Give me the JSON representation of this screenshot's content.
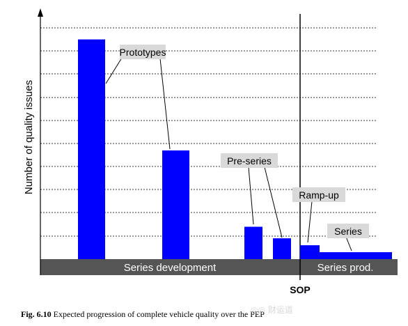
{
  "chart_data": {
    "type": "bar",
    "ylabel": "Number of quality issues",
    "grid": true,
    "ylim": [
      0,
      10
    ],
    "bars": [
      {
        "group": "Prototypes",
        "value": 9.5
      },
      {
        "group": "Prototypes",
        "value": 4.7
      },
      {
        "group": "Pre-series",
        "value": 1.4
      },
      {
        "group": "Pre-series",
        "value": 0.9
      },
      {
        "group": "Ramp-up",
        "value": 0.6
      },
      {
        "group": "Series",
        "value": 0.3
      }
    ],
    "annotations": [
      "Prototypes",
      "Pre-series",
      "Ramp-up",
      "Series"
    ],
    "marker": "SOP",
    "phases": [
      "Series development",
      "Series prod."
    ],
    "bar_color": "#0000ff",
    "phase_band_color": "#555555"
  },
  "caption": {
    "label": "Fig. 6.10",
    "text": "Expected progression of complete vehicle quality over the PEP"
  },
  "watermark": "财运道"
}
